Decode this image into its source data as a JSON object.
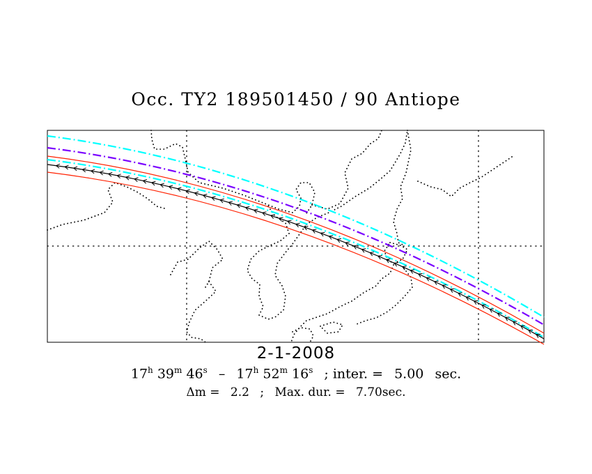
{
  "title": "Occ. TY2 189501450 / 90 Antiope",
  "date": "2-1-2008",
  "time_start": {
    "h": "17",
    "m": "39",
    "s": "46"
  },
  "time_end": {
    "h": "17",
    "m": "52",
    "s": "16"
  },
  "time_units": {
    "h": "h",
    "m": "m",
    "s": "s"
  },
  "time_sep": "–",
  "interval_label": "; inter. =",
  "interval_value": "5.00",
  "interval_unit": "sec.",
  "delta_m_label": "Δm =",
  "delta_m_value": "2.2",
  "separator": ";",
  "max_dur_label": "Max. dur. =",
  "max_dur_value": "7.70sec.",
  "colors": {
    "central_line": "#000000",
    "path_limits": "#ff2000",
    "one_sigma": "#00ffff",
    "uncertainty": "#7a00ff",
    "coastline": "#000000",
    "grid": "#000000",
    "frame": "#000000"
  },
  "map": {
    "region": "East Asia (China, Korea, Japan)",
    "grid_style": "dotted",
    "central_line_marker": "arrow-chevron"
  }
}
